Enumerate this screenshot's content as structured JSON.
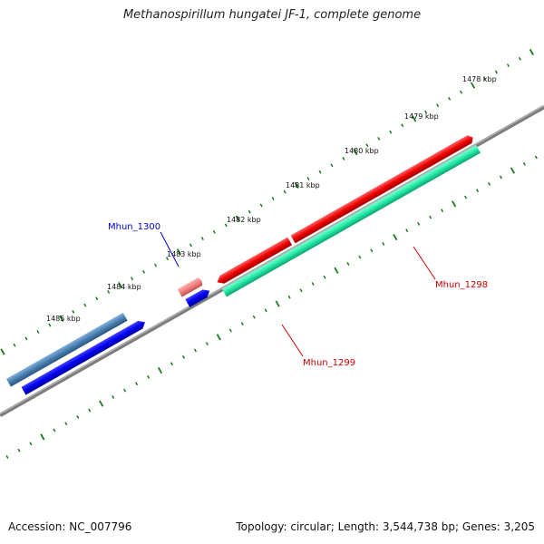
{
  "header": {
    "title": "Methanospirillum hungatei JF-1, complete genome"
  },
  "footer": {
    "accession": "Accession: NC_007796",
    "summary": "Topology: circular; Length: 3,544,738 bp; Genes: 3,205"
  },
  "ruler": {
    "ticks": [
      "1478 kbp",
      "1479 kbp",
      "1480 kbp",
      "1481 kbp",
      "1482 kbp",
      "1483 kbp",
      "1484 kbp",
      "1485 kbp"
    ]
  },
  "genes": {
    "mhun_1300": "Mhun_1300",
    "mhun_1299": "Mhun_1299",
    "mhun_1298": "Mhun_1298"
  },
  "colors": {
    "backbone": "#7d7d7d",
    "tick": "#1a7a1a",
    "blue_feature": "#0000ee",
    "steel_feature": "#4a7fb0",
    "red_feature": "#ee0000",
    "pink_feature": "#ee8080",
    "teal_feature": "#20e8a8",
    "label_blue": "#0000cc",
    "label_red": "#cc0000"
  }
}
